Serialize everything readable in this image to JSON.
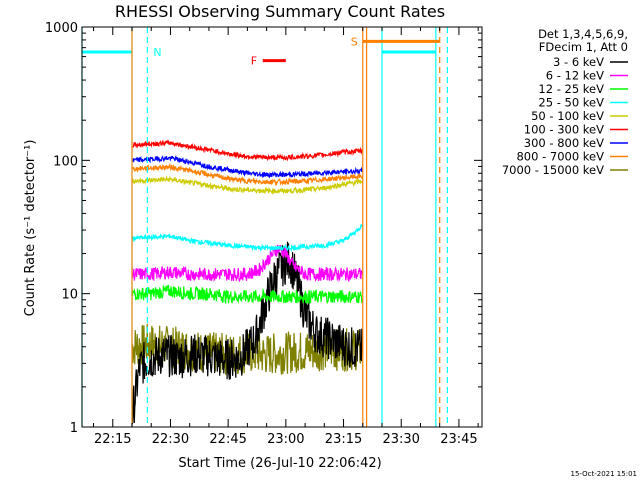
{
  "chart_data": {
    "type": "line",
    "title": "RHESSI Observing Summary Count Rates",
    "xlabel": "Start Time (26-Jul-10 22:06:42)",
    "ylabel": "Count Rate (s⁻¹ detector⁻¹)",
    "yscale": "log",
    "ylim": [
      1,
      1000
    ],
    "xlim_min": [
      7,
      111
    ],
    "x_ticks": [
      {
        "min": 15,
        "label": "22:15"
      },
      {
        "min": 30,
        "label": "22:30"
      },
      {
        "min": 45,
        "label": "22:45"
      },
      {
        "min": 60,
        "label": "23:00"
      },
      {
        "min": 75,
        "label": "23:15"
      },
      {
        "min": 90,
        "label": "23:30"
      },
      {
        "min": 105,
        "label": "23:45"
      }
    ],
    "y_ticks": [
      {
        "value": 1,
        "label": "1"
      },
      {
        "value": 10,
        "label": "10"
      },
      {
        "value": 100,
        "label": "100"
      },
      {
        "value": 1000,
        "label": "1000"
      }
    ],
    "legend_header": [
      "Det 1,3,4,5,6,9,",
      "FDecim 1, Att 0"
    ],
    "series": [
      {
        "name": "3 - 6 keV",
        "color": "#000000",
        "x": [
          20,
          22,
          24,
          28,
          32,
          36,
          40,
          44,
          48,
          52,
          55,
          57,
          59,
          61,
          63,
          65,
          68,
          72,
          76,
          80
        ],
        "values": [
          1.2,
          2.8,
          3.2,
          3.5,
          3.3,
          3.5,
          3.4,
          3.2,
          3.3,
          4.5,
          9,
          13,
          16,
          18,
          12,
          7,
          5,
          4.5,
          4,
          3.8
        ]
      },
      {
        "name": "6 - 12 keV",
        "color": "#ff00ff",
        "x": [
          20,
          25,
          30,
          35,
          40,
          45,
          50,
          53,
          56,
          58,
          60,
          62,
          65,
          70,
          75,
          80
        ],
        "values": [
          14,
          14,
          14.5,
          14,
          14,
          14,
          14,
          15,
          19,
          22,
          20,
          16,
          14,
          14,
          14,
          14
        ]
      },
      {
        "name": "12 - 25 keV",
        "color": "#00ff00",
        "x": [
          20,
          25,
          30,
          35,
          40,
          45,
          50,
          55,
          60,
          65,
          70,
          75,
          80
        ],
        "values": [
          10,
          10,
          10.5,
          10,
          10,
          9.5,
          9.5,
          9.5,
          9.5,
          9.5,
          9.5,
          9.5,
          9.5
        ]
      },
      {
        "name": "25 - 50 keV",
        "color": "#00ffff",
        "x": [
          20,
          25,
          30,
          35,
          40,
          45,
          50,
          55,
          60,
          65,
          70,
          75,
          78,
          80
        ],
        "values": [
          26,
          26.5,
          27,
          25,
          24,
          23,
          22.5,
          22,
          22,
          22.5,
          23,
          25,
          29,
          33
        ]
      },
      {
        "name": "50 - 100 keV",
        "color": "#cccc00",
        "x": [
          20,
          25,
          30,
          35,
          40,
          45,
          50,
          55,
          60,
          65,
          70,
          75,
          80
        ],
        "values": [
          70,
          71,
          72,
          68,
          65,
          61,
          60,
          59,
          59,
          60,
          62,
          66,
          70
        ]
      },
      {
        "name": "100 - 300 keV",
        "color": "#ff0000",
        "x": [
          20,
          25,
          30,
          35,
          40,
          45,
          50,
          55,
          60,
          65,
          70,
          75,
          80
        ],
        "values": [
          130,
          133,
          135,
          127,
          120,
          112,
          107,
          105,
          105,
          107,
          110,
          115,
          118
        ]
      },
      {
        "name": "300 - 800 keV",
        "color": "#0000ff",
        "x": [
          20,
          25,
          30,
          35,
          40,
          45,
          50,
          55,
          60,
          65,
          70,
          75,
          80
        ],
        "values": [
          100,
          102,
          104,
          97,
          90,
          85,
          80,
          78,
          78,
          79,
          81,
          82,
          83
        ]
      },
      {
        "name": "800 - 7000 keV",
        "color": "#ff8000",
        "x": [
          20,
          25,
          30,
          35,
          40,
          45,
          50,
          55,
          60,
          65,
          70,
          75,
          80
        ],
        "values": [
          86,
          88,
          89,
          84,
          78,
          73,
          70,
          69,
          69,
          70,
          72,
          74,
          76
        ]
      },
      {
        "name": "7000 - 15000 keV",
        "color": "#808000",
        "x": [
          20,
          25,
          30,
          35,
          40,
          45,
          50,
          55,
          60,
          65,
          70,
          75,
          80
        ],
        "values": [
          4,
          4.2,
          4,
          3.8,
          3.6,
          3.5,
          3.6,
          3.5,
          3.6,
          3.7,
          3.8,
          3.8,
          3.8
        ]
      }
    ],
    "night_intervals_min": [
      [
        7,
        20
      ],
      [
        85,
        99
      ]
    ],
    "night_level": 650,
    "attenuator_bar": {
      "label": "S",
      "start_min": 80,
      "end_min": 100,
      "value": 780,
      "color": "#ff8000"
    },
    "flare_bar": {
      "label": "F",
      "start_min": 54,
      "end_min": 60,
      "value": 560,
      "color": "#ff0000"
    },
    "markers": [
      {
        "min": 20,
        "color": "#ff8000",
        "style": "solid"
      },
      {
        "min": 24,
        "color": "#00ffff",
        "style": "dashed",
        "label": "N"
      },
      {
        "min": 80,
        "color": "#ff8000",
        "style": "solid"
      },
      {
        "min": 81,
        "color": "#ff8000",
        "style": "solid"
      },
      {
        "min": 100,
        "color": "#ff8000",
        "style": "dashed"
      },
      {
        "min": 102,
        "color": "#00ffff",
        "style": "dashed"
      }
    ],
    "timestamp": "15-Oct-2021 15:01"
  }
}
